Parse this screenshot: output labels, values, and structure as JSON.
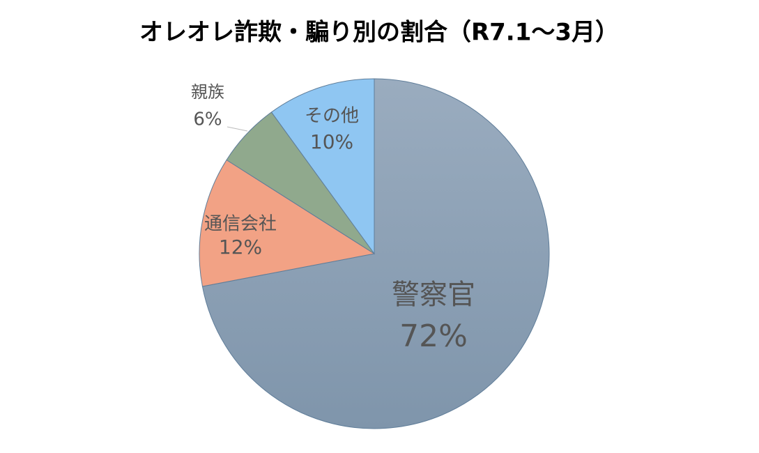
{
  "chart_data": {
    "type": "pie",
    "title": "オレオレ詐欺・騙り別の割合（R7.1～3月）",
    "categories": [
      "警察官",
      "通信会社",
      "親族",
      "その他"
    ],
    "values": [
      72,
      12,
      6,
      10
    ],
    "value_labels": [
      "72%",
      "12%",
      "6%",
      "10%"
    ],
    "colors": [
      "#8ea2b7",
      "#f2a285",
      "#90a98d",
      "#8fc6f2"
    ]
  }
}
